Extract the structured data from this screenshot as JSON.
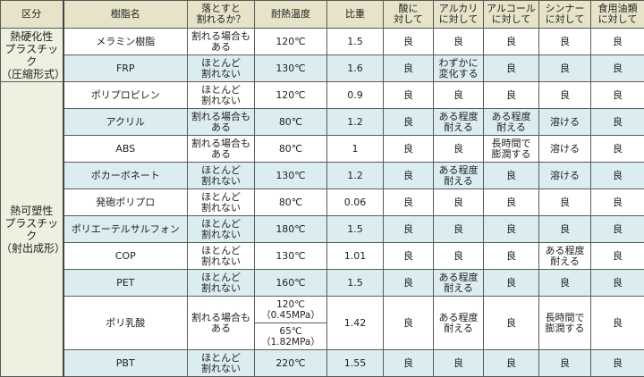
{
  "headers": [
    "区分",
    "樹脂名",
    "落とすと\n割れるか？",
    "耐熱温度",
    "比重",
    "酸に\n対して",
    "アルカリ\nに対して",
    "アルコール\nに対して",
    "シンナー\nに対して",
    "食用油類\nに対して"
  ],
  "categories": [
    {
      "label": "熱硬化性\nプラスチック\n（圧縮形式）",
      "span": 2
    },
    {
      "label": "熱可塑性\nプラスチック\n（射出成形）",
      "span": 10
    }
  ],
  "rows": [
    {
      "name": "メラミン樹脂",
      "drop": "割れる場合も\nある",
      "heat": "120℃",
      "sg": "1.5",
      "acid": "良",
      "alkali": "良",
      "alcohol": "良",
      "thinner": "良",
      "oil": "良"
    },
    {
      "name": "FRP",
      "drop": "ほとんど\n割れない",
      "heat": "130℃",
      "sg": "1.6",
      "acid": "良",
      "alkali": "わずかに\n変化する",
      "alcohol": "良",
      "thinner": "良",
      "oil": "良"
    },
    {
      "name": "ポリプロピレン",
      "drop": "ほとんど\n割れない",
      "heat": "120℃",
      "sg": "0.9",
      "acid": "良",
      "alkali": "良",
      "alcohol": "良",
      "thinner": "良",
      "oil": "良"
    },
    {
      "name": "アクリル",
      "drop": "割れる場合も\nある",
      "heat": "80℃",
      "sg": "1.2",
      "acid": "良",
      "alkali": "ある程度\n耐える",
      "alcohol": "ある程度\n耐える",
      "thinner": "溶ける",
      "oil": "良"
    },
    {
      "name": "ABS",
      "drop": "割れる場合も\nある",
      "heat": "80℃",
      "sg": "1",
      "acid": "良",
      "alkali": "良",
      "alcohol": "長時間で\n膨潤する",
      "thinner": "溶ける",
      "oil": "良"
    },
    {
      "name": "ポカーボネート",
      "drop": "ほとんど\n割れない",
      "heat": "130℃",
      "sg": "1.2",
      "acid": "良",
      "alkali": "ある程度\n耐える",
      "alcohol": "良",
      "thinner": "溶ける",
      "oil": "良"
    },
    {
      "name": "発砲ポリプロ",
      "drop": "ほとんど\n割れない",
      "heat": "80℃",
      "sg": "0.06",
      "acid": "良",
      "alkali": "良",
      "alcohol": "良",
      "thinner": "良",
      "oil": "良"
    },
    {
      "name": "ポリエーテルサルフォン",
      "drop": "ほとんど\n割れない",
      "heat": "180℃",
      "sg": "1.5",
      "acid": "良",
      "alkali": "良",
      "alcohol": "良",
      "thinner": "良",
      "oil": "良"
    },
    {
      "name": "COP",
      "drop": "ほとんど\n割れない",
      "heat": "130℃",
      "sg": "1.01",
      "acid": "良",
      "alkali": "良",
      "alcohol": "良",
      "thinner": "ある程度\n耐える",
      "oil": "良"
    },
    {
      "name": "PET",
      "drop": "ほとんど\n割れない",
      "heat": "160℃",
      "sg": "1.5",
      "acid": "良",
      "alkali": "ある程度\n耐える",
      "alcohol": "良",
      "thinner": "良",
      "oil": "良"
    },
    {
      "name": "ポリ乳酸",
      "drop": "割れる場合も\nある",
      "heat": "120℃\n（0.45MPa）",
      "heat2": "65℃\n（1.82MPa）",
      "sg": "1.42",
      "acid": "良",
      "alkali": "ある程度\n耐える",
      "alcohol": "良",
      "thinner": "長時間で\n膨潤する",
      "oil": "良"
    },
    {
      "name": "PBT",
      "drop": "ほとんど\n割れない",
      "heat": "220℃",
      "sg": "1.55",
      "acid": "良",
      "alkali": "良",
      "alcohol": "良",
      "thinner": "良",
      "oil": "良"
    }
  ],
  "colors": {
    "header": "#e7e3c8",
    "category": "#eef1df",
    "stripe": "#dcedf2",
    "border": "#5a5a5a"
  }
}
